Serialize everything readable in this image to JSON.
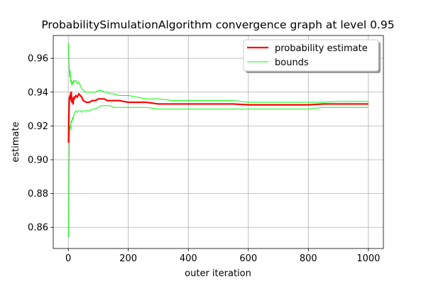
{
  "chart_data": {
    "type": "line",
    "title": "ProbabilitySimulationAlgorithm convergence graph at level 0.95",
    "xlabel": "outer iteration",
    "ylabel": "estimate",
    "xlim": [
      -50,
      1050
    ],
    "ylim": [
      0.8475,
      0.9735
    ],
    "xticks": [
      0,
      200,
      400,
      600,
      800,
      1000
    ],
    "yticks": [
      0.86,
      0.88,
      0.9,
      0.92,
      0.94,
      0.96
    ],
    "ytick_labels": [
      "0.86",
      "0.88",
      "0.90",
      "0.92",
      "0.94",
      "0.96"
    ],
    "grid": true,
    "legend": {
      "position": "top-right",
      "entries": [
        "probability estimate",
        "bounds"
      ]
    },
    "series": [
      {
        "name": "probability estimate",
        "color": "#ff0000",
        "x": [
          1,
          2,
          3,
          4,
          5,
          6,
          7,
          8,
          10,
          12,
          14,
          16,
          18,
          20,
          25,
          30,
          35,
          40,
          45,
          50,
          60,
          70,
          80,
          90,
          100,
          110,
          120,
          130,
          140,
          150,
          170,
          200,
          230,
          260,
          300,
          350,
          400,
          450,
          500,
          550,
          600,
          650,
          700,
          750,
          800,
          850,
          900,
          950,
          1000
        ],
        "values": [
          0.91,
          0.925,
          0.933,
          0.937,
          0.935,
          0.938,
          0.936,
          0.939,
          0.94,
          0.934,
          0.936,
          0.933,
          0.937,
          0.936,
          0.938,
          0.937,
          0.939,
          0.938,
          0.937,
          0.935,
          0.934,
          0.934,
          0.935,
          0.935,
          0.936,
          0.936,
          0.936,
          0.935,
          0.935,
          0.935,
          0.935,
          0.934,
          0.934,
          0.934,
          0.933,
          0.933,
          0.933,
          0.933,
          0.933,
          0.933,
          0.9325,
          0.9325,
          0.9325,
          0.9325,
          0.9325,
          0.933,
          0.933,
          0.933,
          0.933
        ]
      },
      {
        "name": "bounds",
        "color": "#00ff00",
        "x": [
          1,
          2,
          3,
          4,
          5,
          6,
          7,
          8,
          10,
          12,
          14,
          16,
          18,
          20,
          25,
          30,
          35,
          40,
          45,
          50,
          60,
          70,
          80,
          90,
          100,
          110,
          120,
          130,
          140,
          150,
          170,
          200,
          230,
          260,
          300,
          350,
          400,
          450,
          500,
          550,
          600,
          650,
          700,
          750,
          800,
          850,
          900,
          950,
          1000
        ],
        "values": [
          0.969,
          0.962,
          0.955,
          0.951,
          0.949,
          0.953,
          0.95,
          0.946,
          0.947,
          0.944,
          0.946,
          0.945,
          0.947,
          0.946,
          0.947,
          0.945,
          0.946,
          0.944,
          0.942,
          0.941,
          0.94,
          0.94,
          0.94,
          0.94,
          0.941,
          0.941,
          0.94,
          0.94,
          0.939,
          0.939,
          0.938,
          0.938,
          0.937,
          0.936,
          0.936,
          0.935,
          0.935,
          0.935,
          0.935,
          0.935,
          0.934,
          0.934,
          0.934,
          0.934,
          0.934,
          0.934,
          0.9345,
          0.9345,
          0.9345
        ]
      },
      {
        "name": "",
        "color": "#00ff00",
        "x": [
          1,
          2,
          3,
          4,
          5,
          6,
          7,
          8,
          10,
          12,
          14,
          16,
          18,
          20,
          25,
          30,
          35,
          40,
          45,
          50,
          60,
          70,
          80,
          90,
          100,
          110,
          120,
          130,
          140,
          150,
          170,
          200,
          230,
          260,
          300,
          350,
          400,
          450,
          500,
          550,
          600,
          650,
          700,
          750,
          800,
          850,
          900,
          950,
          1000
        ],
        "values": [
          0.854,
          0.88,
          0.905,
          0.915,
          0.918,
          0.92,
          0.918,
          0.921,
          0.923,
          0.922,
          0.925,
          0.924,
          0.926,
          0.927,
          0.929,
          0.928,
          0.929,
          0.929,
          0.928,
          0.929,
          0.929,
          0.929,
          0.93,
          0.93,
          0.931,
          0.932,
          0.932,
          0.932,
          0.932,
          0.931,
          0.931,
          0.931,
          0.931,
          0.931,
          0.93,
          0.93,
          0.93,
          0.93,
          0.93,
          0.93,
          0.93,
          0.93,
          0.93,
          0.93,
          0.93,
          0.931,
          0.931,
          0.931,
          0.931
        ]
      }
    ]
  }
}
